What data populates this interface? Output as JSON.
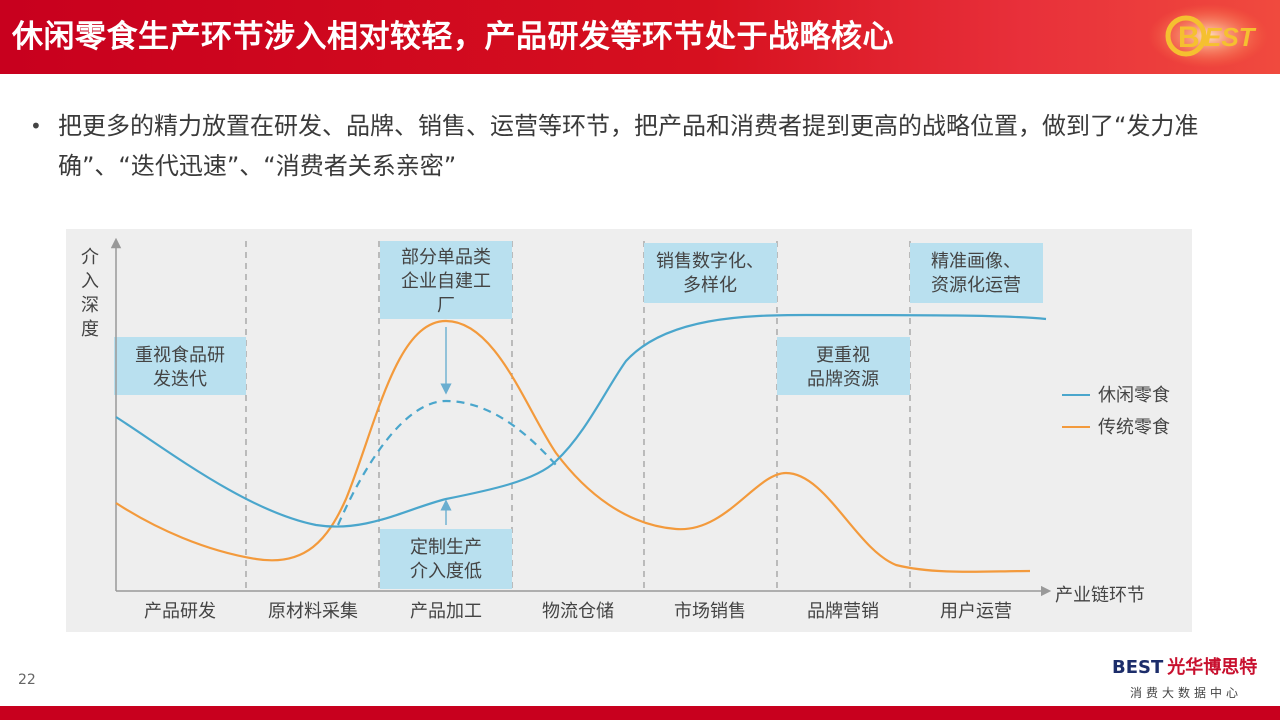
{
  "header": {
    "title": "休闲零食生产环节涉入相对较轻，产品研发等环节处于战略核心",
    "logo_text": "BEST"
  },
  "bullet": {
    "text": "把更多的精力放置在研发、品牌、销售、运营等环节，把产品和消费者提到更高的战略位置，做到了“发力准确”、“迭代迅速”、“消费者关系亲密”"
  },
  "chart_data": {
    "type": "line",
    "ylabel": "介入深度",
    "xlabel": "产业链环节",
    "categories": [
      "产品研发",
      "原材料采集",
      "产品加工",
      "物流仓储",
      "市场销售",
      "品牌营销",
      "用户运营"
    ],
    "series": [
      {
        "name": "休闲零食",
        "color": "#4aa6cc"
      },
      {
        "name": "传统零食",
        "color": "#f39a3c"
      }
    ],
    "annotations": [
      {
        "lines": [
          "重视食品研",
          "发迭代"
        ]
      },
      {
        "lines": [
          "部分单品类",
          "企业自建工",
          "厂"
        ]
      },
      {
        "lines": [
          "定制生产",
          "介入度低"
        ]
      },
      {
        "lines": [
          "销售数字化、",
          "多样化"
        ]
      },
      {
        "lines": [
          "更重视",
          "品牌资源"
        ]
      },
      {
        "lines": [
          "精准画像、",
          "资源化运营"
        ]
      }
    ],
    "colors": {
      "box_fill": "#b9e0ef",
      "panel_bg": "#eeeeee"
    }
  },
  "page_number": "22",
  "footer": {
    "brand_en": "BEST",
    "brand_cn": "光华博思特",
    "subtitle": "消费大数据中心"
  }
}
